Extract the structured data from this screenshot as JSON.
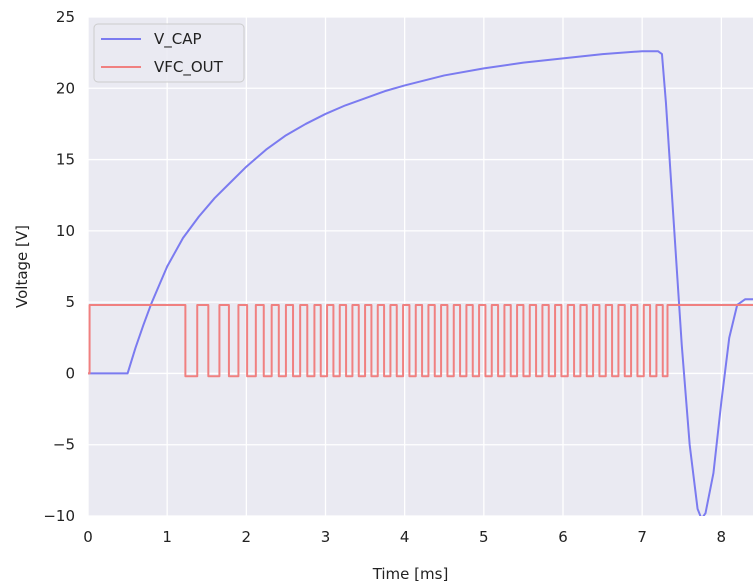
{
  "chart_data": {
    "type": "line",
    "title": "",
    "xlabel": "Time [ms]",
    "ylabel": "Voltage [V]",
    "xlim": [
      0,
      8.4
    ],
    "ylim": [
      -10,
      25
    ],
    "x_ticks": [
      0,
      1,
      2,
      3,
      4,
      5,
      6,
      7,
      8
    ],
    "y_ticks": [
      -10,
      -5,
      0,
      5,
      10,
      15,
      20,
      25
    ],
    "x_tick_labels": [
      "0",
      "1",
      "2",
      "3",
      "4",
      "5",
      "6",
      "7",
      "8"
    ],
    "y_tick_labels": [
      "−10",
      "−5",
      "0",
      "5",
      "10",
      "15",
      "20",
      "25"
    ],
    "grid": true,
    "legend_position": "top-left",
    "series": [
      {
        "name": "V_CAP",
        "color": "#7b7bf0",
        "x": [
          0,
          0.5,
          0.6,
          0.7,
          0.8,
          0.9,
          1.0,
          1.2,
          1.4,
          1.6,
          1.8,
          2.0,
          2.25,
          2.5,
          2.75,
          3.0,
          3.25,
          3.5,
          3.75,
          4.0,
          4.5,
          5.0,
          5.5,
          6.0,
          6.5,
          7.0,
          7.2,
          7.25,
          7.3,
          7.4,
          7.5,
          7.6,
          7.7,
          7.75,
          7.8,
          7.9,
          8.0,
          8.1,
          8.2,
          8.3,
          8.4
        ],
        "y": [
          0,
          0,
          1.8,
          3.4,
          4.9,
          6.2,
          7.5,
          9.5,
          11.0,
          12.3,
          13.4,
          14.5,
          15.7,
          16.7,
          17.5,
          18.2,
          18.8,
          19.3,
          19.8,
          20.2,
          20.9,
          21.4,
          21.8,
          22.1,
          22.4,
          22.6,
          22.6,
          22.4,
          19.0,
          10.5,
          2.0,
          -5.0,
          -9.5,
          -10.2,
          -9.8,
          -7.0,
          -2.0,
          2.5,
          4.8,
          5.2,
          5.2
        ]
      },
      {
        "name": "VFC_OUT",
        "color": "#f08080",
        "x": [
          0,
          0.02,
          0.02,
          1.23,
          1.23,
          1.38,
          1.38,
          1.52,
          1.52,
          1.66,
          1.66,
          1.78,
          1.78,
          1.9,
          1.9,
          2.01,
          2.01,
          2.12,
          2.12,
          2.22,
          2.22,
          2.32,
          2.32,
          2.41,
          2.41,
          2.5,
          2.5,
          2.59,
          2.59,
          2.68,
          2.68,
          2.77,
          2.77,
          2.86,
          2.86,
          2.94,
          2.94,
          3.02,
          3.02,
          3.1,
          3.1,
          3.18,
          3.18,
          3.26,
          3.26,
          3.34,
          3.34,
          3.42,
          3.42,
          3.5,
          3.5,
          3.58,
          3.58,
          3.66,
          3.66,
          3.74,
          3.74,
          3.82,
          3.82,
          3.9,
          3.9,
          3.98,
          3.98,
          4.06,
          4.06,
          4.14,
          4.14,
          4.22,
          4.22,
          4.3,
          4.3,
          4.38,
          4.38,
          4.46,
          4.46,
          4.54,
          4.54,
          4.62,
          4.62,
          4.7,
          4.7,
          4.78,
          4.78,
          4.86,
          4.86,
          4.94,
          4.94,
          5.02,
          5.02,
          5.1,
          5.1,
          5.18,
          5.18,
          5.26,
          5.26,
          5.34,
          5.34,
          5.42,
          5.42,
          5.5,
          5.5,
          5.58,
          5.58,
          5.66,
          5.66,
          5.74,
          5.74,
          5.82,
          5.82,
          5.9,
          5.9,
          5.98,
          5.98,
          6.06,
          6.06,
          6.14,
          6.14,
          6.22,
          6.22,
          6.3,
          6.3,
          6.38,
          6.38,
          6.46,
          6.46,
          6.54,
          6.54,
          6.62,
          6.62,
          6.7,
          6.7,
          6.78,
          6.78,
          6.86,
          6.86,
          6.94,
          6.94,
          7.02,
          7.02,
          7.1,
          7.1,
          7.18,
          7.18,
          7.26,
          7.26,
          7.32,
          7.32,
          8.4
        ],
        "y": [
          0,
          0,
          4.8,
          4.8,
          -0.2,
          -0.2,
          4.8,
          4.8,
          -0.2,
          -0.2,
          4.8,
          4.8,
          -0.2,
          -0.2,
          4.8,
          4.8,
          -0.2,
          -0.2,
          4.8,
          4.8,
          -0.2,
          -0.2,
          4.8,
          4.8,
          -0.2,
          -0.2,
          4.8,
          4.8,
          -0.2,
          -0.2,
          4.8,
          4.8,
          -0.2,
          -0.2,
          4.8,
          4.8,
          -0.2,
          -0.2,
          4.8,
          4.8,
          -0.2,
          -0.2,
          4.8,
          4.8,
          -0.2,
          -0.2,
          4.8,
          4.8,
          -0.2,
          -0.2,
          4.8,
          4.8,
          -0.2,
          -0.2,
          4.8,
          4.8,
          -0.2,
          -0.2,
          4.8,
          4.8,
          -0.2,
          -0.2,
          4.8,
          4.8,
          -0.2,
          -0.2,
          4.8,
          4.8,
          -0.2,
          -0.2,
          4.8,
          4.8,
          -0.2,
          -0.2,
          4.8,
          4.8,
          -0.2,
          -0.2,
          4.8,
          4.8,
          -0.2,
          -0.2,
          4.8,
          4.8,
          -0.2,
          -0.2,
          4.8,
          4.8,
          -0.2,
          -0.2,
          4.8,
          4.8,
          -0.2,
          -0.2,
          4.8,
          4.8,
          -0.2,
          -0.2,
          4.8,
          4.8,
          -0.2,
          -0.2,
          4.8,
          4.8,
          -0.2,
          -0.2,
          4.8,
          4.8,
          -0.2,
          -0.2,
          4.8,
          4.8,
          -0.2,
          -0.2,
          4.8,
          4.8,
          -0.2,
          -0.2,
          4.8,
          4.8,
          -0.2,
          -0.2,
          4.8,
          4.8,
          -0.2,
          -0.2,
          4.8,
          4.8,
          -0.2,
          -0.2,
          4.8,
          4.8,
          -0.2,
          -0.2,
          4.8,
          4.8,
          -0.2,
          -0.2,
          4.8,
          4.8,
          -0.2,
          -0.2,
          4.8,
          4.8,
          -0.2,
          -0.2,
          4.8,
          4.8
        ]
      }
    ]
  },
  "style": {
    "plot_background": "#eaeaf2",
    "grid_color": "#ffffff"
  }
}
